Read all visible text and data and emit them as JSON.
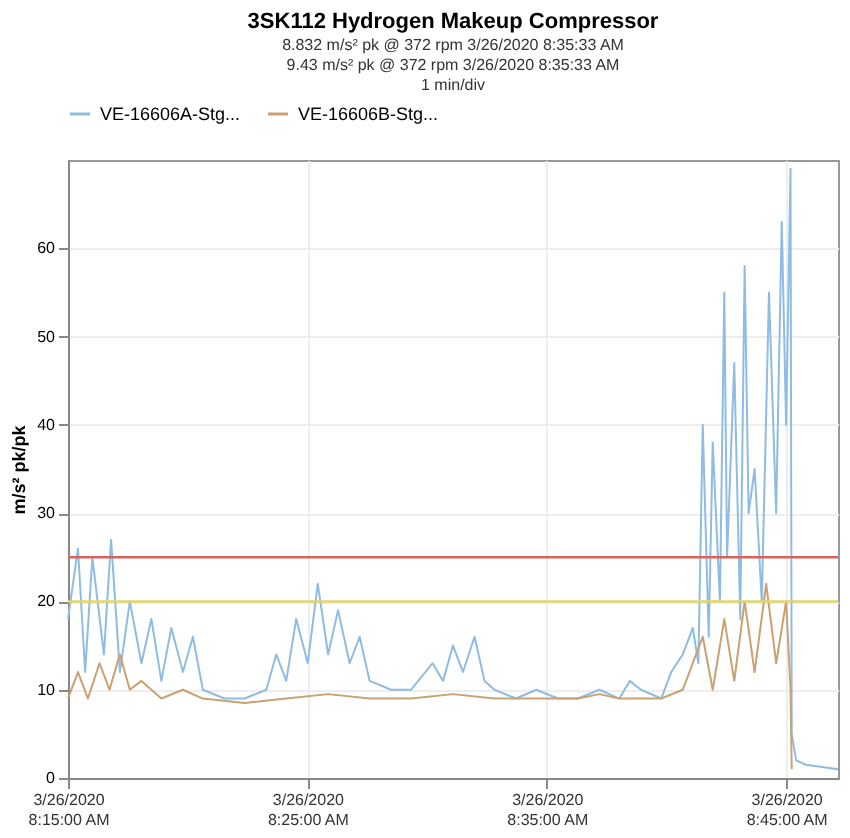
{
  "chart_data": {
    "type": "line",
    "title": "3SK112 Hydrogen Makeup Compressor",
    "annotations": [
      "8.832 m/s² pk @ 372 rpm 3/26/2020 8:35:33 AM",
      "9.43 m/s² pk @ 372 rpm 3/26/2020 8:35:33 AM",
      "1 min/div"
    ],
    "ylabel": "m/s² pk/pk",
    "xlim": [
      "2020-03-26T08:15:00",
      "2020-03-26T08:47:10"
    ],
    "ylim": [
      0,
      70
    ],
    "xticks": [
      {
        "value": "2020-03-26T08:15:00",
        "label": "3/26/2020 8:15:00 AM"
      },
      {
        "value": "2020-03-26T08:25:00",
        "label": "3/26/2020 8:25:00 AM"
      },
      {
        "value": "2020-03-26T08:35:00",
        "label": "3/26/2020 8:35:00 AM"
      },
      {
        "value": "2020-03-26T08:45:00",
        "label": "3/26/2020 8:45:00 AM"
      }
    ],
    "yticks": [
      0,
      10,
      20,
      30,
      40,
      50,
      60
    ],
    "grid": true,
    "legend": "top",
    "line_style": "solid",
    "marker": "none",
    "ref_lines": [
      {
        "axis": "y",
        "value": 25,
        "label": null,
        "color": "#d9625a"
      },
      {
        "axis": "y",
        "value": 20,
        "label": null,
        "color": "#e3d36a"
      }
    ],
    "series": [
      {
        "name": "VE-16606A-Stg...",
        "color": "#8fbce3",
        "x": [
          "2020-03-26T08:15:00",
          "2020-03-26T08:15:25",
          "2020-03-26T08:15:43",
          "2020-03-26T08:16:01",
          "2020-03-26T08:16:30",
          "2020-03-26T08:16:48",
          "2020-03-26T08:17:10",
          "2020-03-26T08:17:35",
          "2020-03-26T08:18:04",
          "2020-03-26T08:18:29",
          "2020-03-26T08:18:54",
          "2020-03-26T08:19:19",
          "2020-03-26T08:19:48",
          "2020-03-26T08:20:13",
          "2020-03-26T08:20:38",
          "2020-03-26T08:21:32",
          "2020-03-26T08:22:23",
          "2020-03-26T08:23:17",
          "2020-03-26T08:23:42",
          "2020-03-26T08:24:07",
          "2020-03-26T08:24:32",
          "2020-03-26T08:25:01",
          "2020-03-26T08:25:26",
          "2020-03-26T08:25:52",
          "2020-03-26T08:26:17",
          "2020-03-26T08:26:46",
          "2020-03-26T08:27:11",
          "2020-03-26T08:27:36",
          "2020-03-26T08:28:30",
          "2020-03-26T08:29:20",
          "2020-03-26T08:30:14",
          "2020-03-26T08:30:40",
          "2020-03-26T08:31:05",
          "2020-03-26T08:31:30",
          "2020-03-26T08:31:59",
          "2020-03-26T08:32:24",
          "2020-03-26T08:32:49",
          "2020-03-26T08:33:43",
          "2020-03-26T08:34:34",
          "2020-03-26T08:35:28",
          "2020-03-26T08:36:18",
          "2020-03-26T08:37:12",
          "2020-03-26T08:38:02",
          "2020-03-26T08:38:28",
          "2020-03-26T08:38:56",
          "2020-03-26T08:39:47",
          "2020-03-26T08:40:12",
          "2020-03-26T08:40:41",
          "2020-03-26T08:41:06",
          "2020-03-26T08:41:20",
          "2020-03-26T08:41:31",
          "2020-03-26T08:41:46",
          "2020-03-26T08:41:56",
          "2020-03-26T08:42:14",
          "2020-03-26T08:42:25",
          "2020-03-26T08:42:32",
          "2020-03-26T08:42:50",
          "2020-03-26T08:43:05",
          "2020-03-26T08:43:16",
          "2020-03-26T08:43:26",
          "2020-03-26T08:43:41",
          "2020-03-26T08:43:59",
          "2020-03-26T08:44:17",
          "2020-03-26T08:44:35",
          "2020-03-26T08:44:49",
          "2020-03-26T08:45:00",
          "2020-03-26T08:45:11",
          "2020-03-26T08:45:14",
          "2020-03-26T08:45:25",
          "2020-03-26T08:45:50",
          "2020-03-26T08:47:10"
        ],
        "values": [
          18,
          26,
          12,
          25,
          14,
          27,
          12,
          20,
          13,
          18,
          11,
          17,
          12,
          16,
          10,
          9,
          9,
          10,
          14,
          11,
          18,
          13,
          22,
          14,
          19,
          13,
          16,
          11,
          10,
          10,
          13,
          11,
          15,
          12,
          16,
          11,
          10,
          9,
          10,
          9,
          9,
          10,
          9,
          11,
          10,
          9,
          12,
          14,
          17,
          13,
          40,
          16,
          38,
          20,
          55,
          25,
          47,
          18,
          58,
          30,
          35,
          20,
          55,
          30,
          63,
          40,
          69,
          5,
          2,
          1.5,
          1
        ]
      },
      {
        "name": "VE-16606B-Stg...",
        "color": "#c9a173",
        "x": [
          "2020-03-26T08:15:00",
          "2020-03-26T08:15:25",
          "2020-03-26T08:15:50",
          "2020-03-26T08:16:19",
          "2020-03-26T08:16:44",
          "2020-03-26T08:17:10",
          "2020-03-26T08:17:35",
          "2020-03-26T08:18:04",
          "2020-03-26T08:18:54",
          "2020-03-26T08:19:48",
          "2020-03-26T08:20:38",
          "2020-03-26T08:22:23",
          "2020-03-26T08:24:07",
          "2020-03-26T08:25:52",
          "2020-03-26T08:27:36",
          "2020-03-26T08:29:20",
          "2020-03-26T08:31:05",
          "2020-03-26T08:32:49",
          "2020-03-26T08:34:34",
          "2020-03-26T08:36:18",
          "2020-03-26T08:37:12",
          "2020-03-26T08:38:02",
          "2020-03-26T08:39:47",
          "2020-03-26T08:40:41",
          "2020-03-26T08:41:31",
          "2020-03-26T08:41:56",
          "2020-03-26T08:42:25",
          "2020-03-26T08:42:50",
          "2020-03-26T08:43:16",
          "2020-03-26T08:43:41",
          "2020-03-26T08:44:10",
          "2020-03-26T08:44:35",
          "2020-03-26T08:45:00",
          "2020-03-26T08:45:11",
          "2020-03-26T08:45:14"
        ],
        "values": [
          9,
          12,
          9,
          13,
          10,
          14,
          10,
          11,
          9,
          10,
          9,
          8.5,
          9,
          9.5,
          9,
          9,
          9.5,
          9,
          9,
          9,
          9.5,
          9,
          9,
          10,
          16,
          10,
          18,
          11,
          20,
          12,
          22,
          13,
          20,
          10,
          1
        ]
      }
    ]
  }
}
